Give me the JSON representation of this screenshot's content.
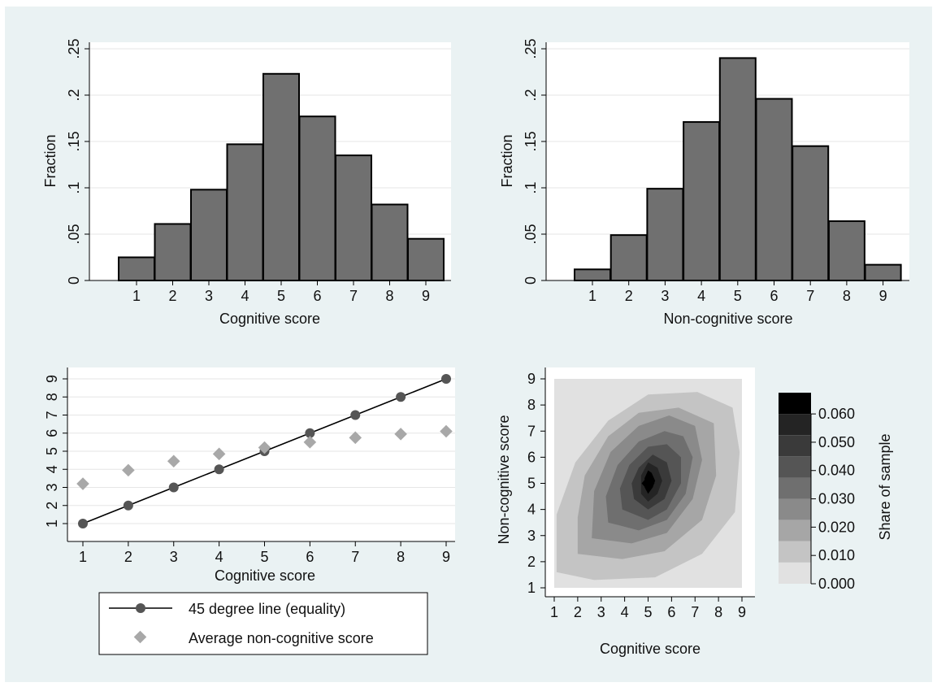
{
  "chart_data": [
    {
      "type": "bar",
      "categories": [
        "1",
        "2",
        "3",
        "4",
        "5",
        "6",
        "7",
        "8",
        "9"
      ],
      "values": [
        0.025,
        0.061,
        0.098,
        0.147,
        0.223,
        0.177,
        0.135,
        0.082,
        0.045
      ],
      "xlabel": "Cognitive score",
      "ylabel": "Fraction",
      "ylim": [
        0,
        0.25
      ],
      "yticks": [
        ".25",
        ".2",
        ".15",
        ".1",
        ".05",
        "0"
      ],
      "grid": true,
      "bar_color": "#707070"
    },
    {
      "type": "bar",
      "categories": [
        "1",
        "2",
        "3",
        "4",
        "5",
        "6",
        "7",
        "8",
        "9"
      ],
      "values": [
        0.012,
        0.049,
        0.099,
        0.171,
        0.24,
        0.196,
        0.145,
        0.064,
        0.017
      ],
      "xlabel": "Non-cognitive score",
      "ylabel": "Fraction",
      "ylim": [
        0,
        0.25
      ],
      "yticks": [
        ".25",
        ".2",
        ".15",
        ".1",
        ".05",
        "0"
      ],
      "grid": true,
      "bar_color": "#707070"
    },
    {
      "type": "line",
      "x": [
        1,
        2,
        3,
        4,
        5,
        6,
        7,
        8,
        9
      ],
      "xticks": [
        "1",
        "2",
        "3",
        "4",
        "5",
        "6",
        "7",
        "8",
        "9"
      ],
      "yticks": [
        "1",
        "2",
        "3",
        "4",
        "5",
        "6",
        "7",
        "8",
        "9"
      ],
      "xlabel": "Cognitive score",
      "ylabel": "",
      "xlim": [
        1,
        9
      ],
      "ylim": [
        1,
        9
      ],
      "grid": true,
      "series": [
        {
          "name": "45 degree line (equality)",
          "values": [
            1,
            2,
            3,
            4,
            5,
            6,
            7,
            8,
            9
          ],
          "color": "#555555",
          "marker": "circle"
        },
        {
          "name": "Average non-cognitive score",
          "values": [
            3.2,
            3.95,
            4.45,
            4.85,
            5.2,
            5.5,
            5.75,
            5.95,
            6.1
          ],
          "color": "#a8a8a8",
          "marker": "diamond"
        }
      ],
      "legend": "bottom"
    },
    {
      "type": "heatmap",
      "xlabel": "Cognitive score",
      "ylabel": "Non-cognitive score",
      "xticks": [
        "1",
        "2",
        "3",
        "4",
        "5",
        "6",
        "7",
        "8",
        "9"
      ],
      "yticks": [
        "1",
        "2",
        "3",
        "4",
        "5",
        "6",
        "7",
        "8",
        "9"
      ],
      "xlim": [
        1,
        9
      ],
      "ylim": [
        1,
        9
      ],
      "peak": [
        5,
        5
      ],
      "colorbar": {
        "title": "Share of sample",
        "ticks": [
          "0.060",
          "0.050",
          "0.040",
          "0.030",
          "0.020",
          "0.010",
          "0.000"
        ],
        "colors": [
          "#000000",
          "#242424",
          "#3a3a3a",
          "#555555",
          "#6f6f6f",
          "#8a8a8a",
          "#a6a6a6",
          "#c4c4c4",
          "#e1e1e1"
        ]
      },
      "legend": "right"
    }
  ]
}
